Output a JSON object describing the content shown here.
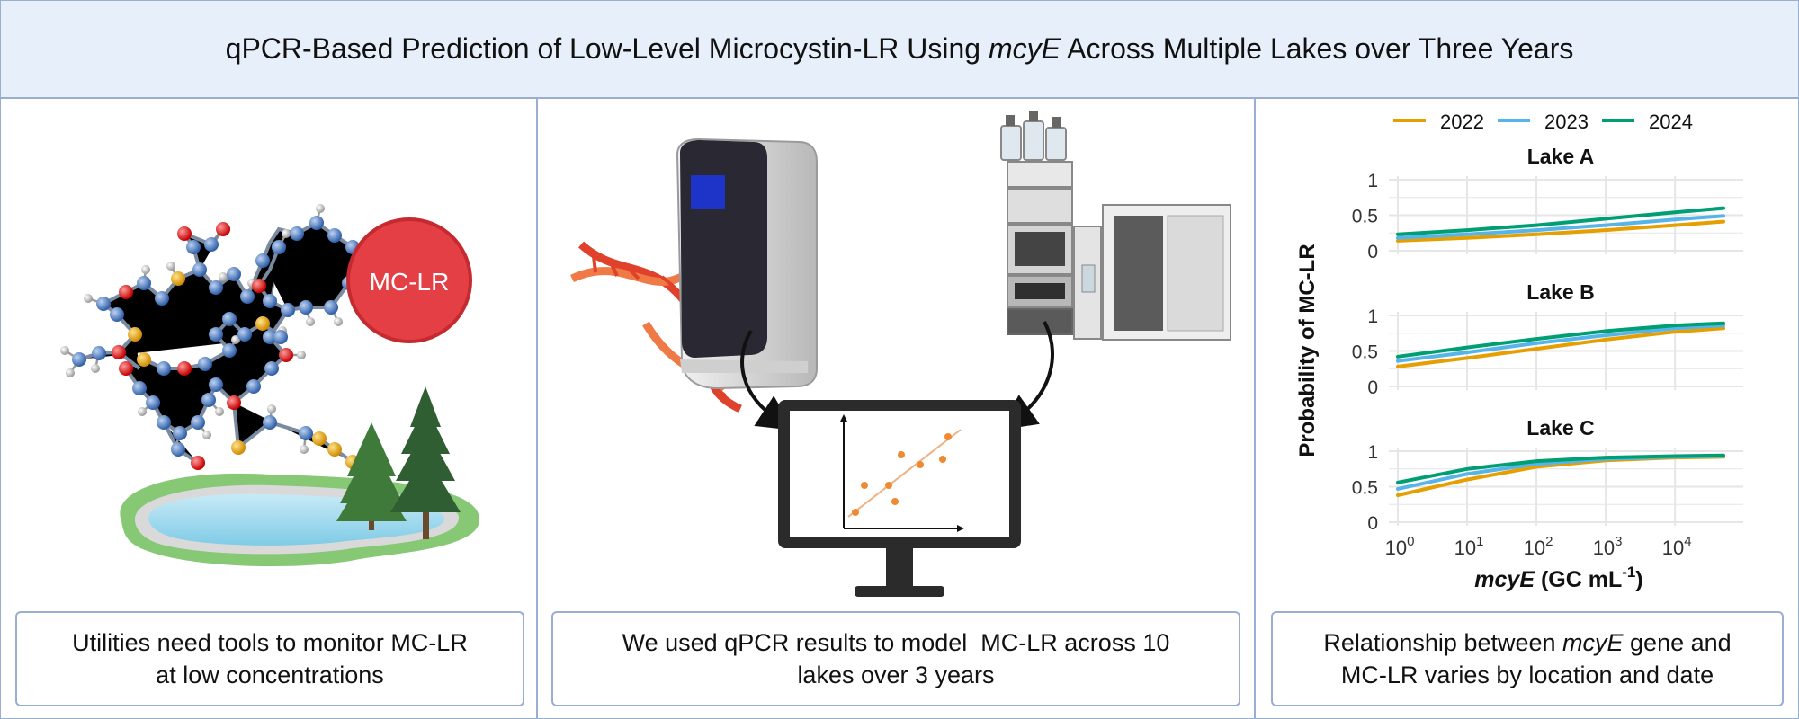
{
  "title": {
    "prefix": "qPCR-Based Prediction of Low-Level Microcystin-LR Using ",
    "gene": "mcyE",
    "suffix": " Across Multiple Lakes over Three Years"
  },
  "panel1": {
    "badge": "MC-LR",
    "caption_line1": "Utilities need tools to monitor MC-LR",
    "caption_line2": "at low concentrations"
  },
  "panel2": {
    "caption_line1": "We used qPCR results to model  MC-LR across 10",
    "caption_line2": "lakes over 3 years"
  },
  "panel3": {
    "caption_gene": "mcyE",
    "caption_line1_prefix": "Relationship between ",
    "caption_line1_suffix": " gene and",
    "caption_line2": "MC-LR varies by location and date"
  },
  "chart_data": {
    "type": "line",
    "layout": "faceted (3 stacked panels)",
    "ylabel": "Probability of MC-LR",
    "xlabel_gene": "mcyE",
    "xlabel_units": " (GC mL",
    "xlabel_exp": "-1",
    "xlabel_close": ")",
    "x_scale": "log10",
    "xlim": [
      1,
      50000
    ],
    "ylim": [
      0,
      1
    ],
    "x_ticks": [
      {
        "value": 1,
        "base": "10",
        "exp": "0"
      },
      {
        "value": 10,
        "base": "10",
        "exp": "1"
      },
      {
        "value": 100,
        "base": "10",
        "exp": "2"
      },
      {
        "value": 1000,
        "base": "10",
        "exp": "3"
      },
      {
        "value": 10000,
        "base": "10",
        "exp": "4"
      }
    ],
    "y_ticks": [
      {
        "value": 0,
        "label": "0"
      },
      {
        "value": 0.5,
        "label": "0.5"
      },
      {
        "value": 1,
        "label": "1"
      }
    ],
    "legend": [
      {
        "name": "2022",
        "color": "#e69f00"
      },
      {
        "name": "2023",
        "color": "#56b4e9"
      },
      {
        "name": "2024",
        "color": "#009e73"
      }
    ],
    "x": [
      1,
      10,
      100,
      1000,
      10000,
      50000
    ],
    "facets": [
      {
        "title": "Lake A",
        "series": [
          {
            "name": "2022",
            "values": [
              0.14,
              0.18,
              0.23,
              0.29,
              0.36,
              0.41
            ]
          },
          {
            "name": "2023",
            "values": [
              0.18,
              0.23,
              0.29,
              0.36,
              0.44,
              0.49
            ]
          },
          {
            "name": "2024",
            "values": [
              0.23,
              0.29,
              0.36,
              0.45,
              0.54,
              0.6
            ]
          }
        ]
      },
      {
        "title": "Lake B",
        "series": [
          {
            "name": "2022",
            "values": [
              0.28,
              0.4,
              0.53,
              0.66,
              0.77,
              0.82
            ]
          },
          {
            "name": "2023",
            "values": [
              0.36,
              0.48,
              0.61,
              0.72,
              0.82,
              0.86
            ]
          },
          {
            "name": "2024",
            "values": [
              0.42,
              0.55,
              0.67,
              0.78,
              0.86,
              0.89
            ]
          }
        ]
      },
      {
        "title": "Lake C",
        "series": [
          {
            "name": "2022",
            "values": [
              0.38,
              0.6,
              0.78,
              0.87,
              0.91,
              0.92
            ]
          },
          {
            "name": "2023",
            "values": [
              0.47,
              0.68,
              0.82,
              0.89,
              0.92,
              0.93
            ]
          },
          {
            "name": "2024",
            "values": [
              0.56,
              0.75,
              0.86,
              0.91,
              0.93,
              0.94
            ]
          }
        ]
      }
    ]
  }
}
